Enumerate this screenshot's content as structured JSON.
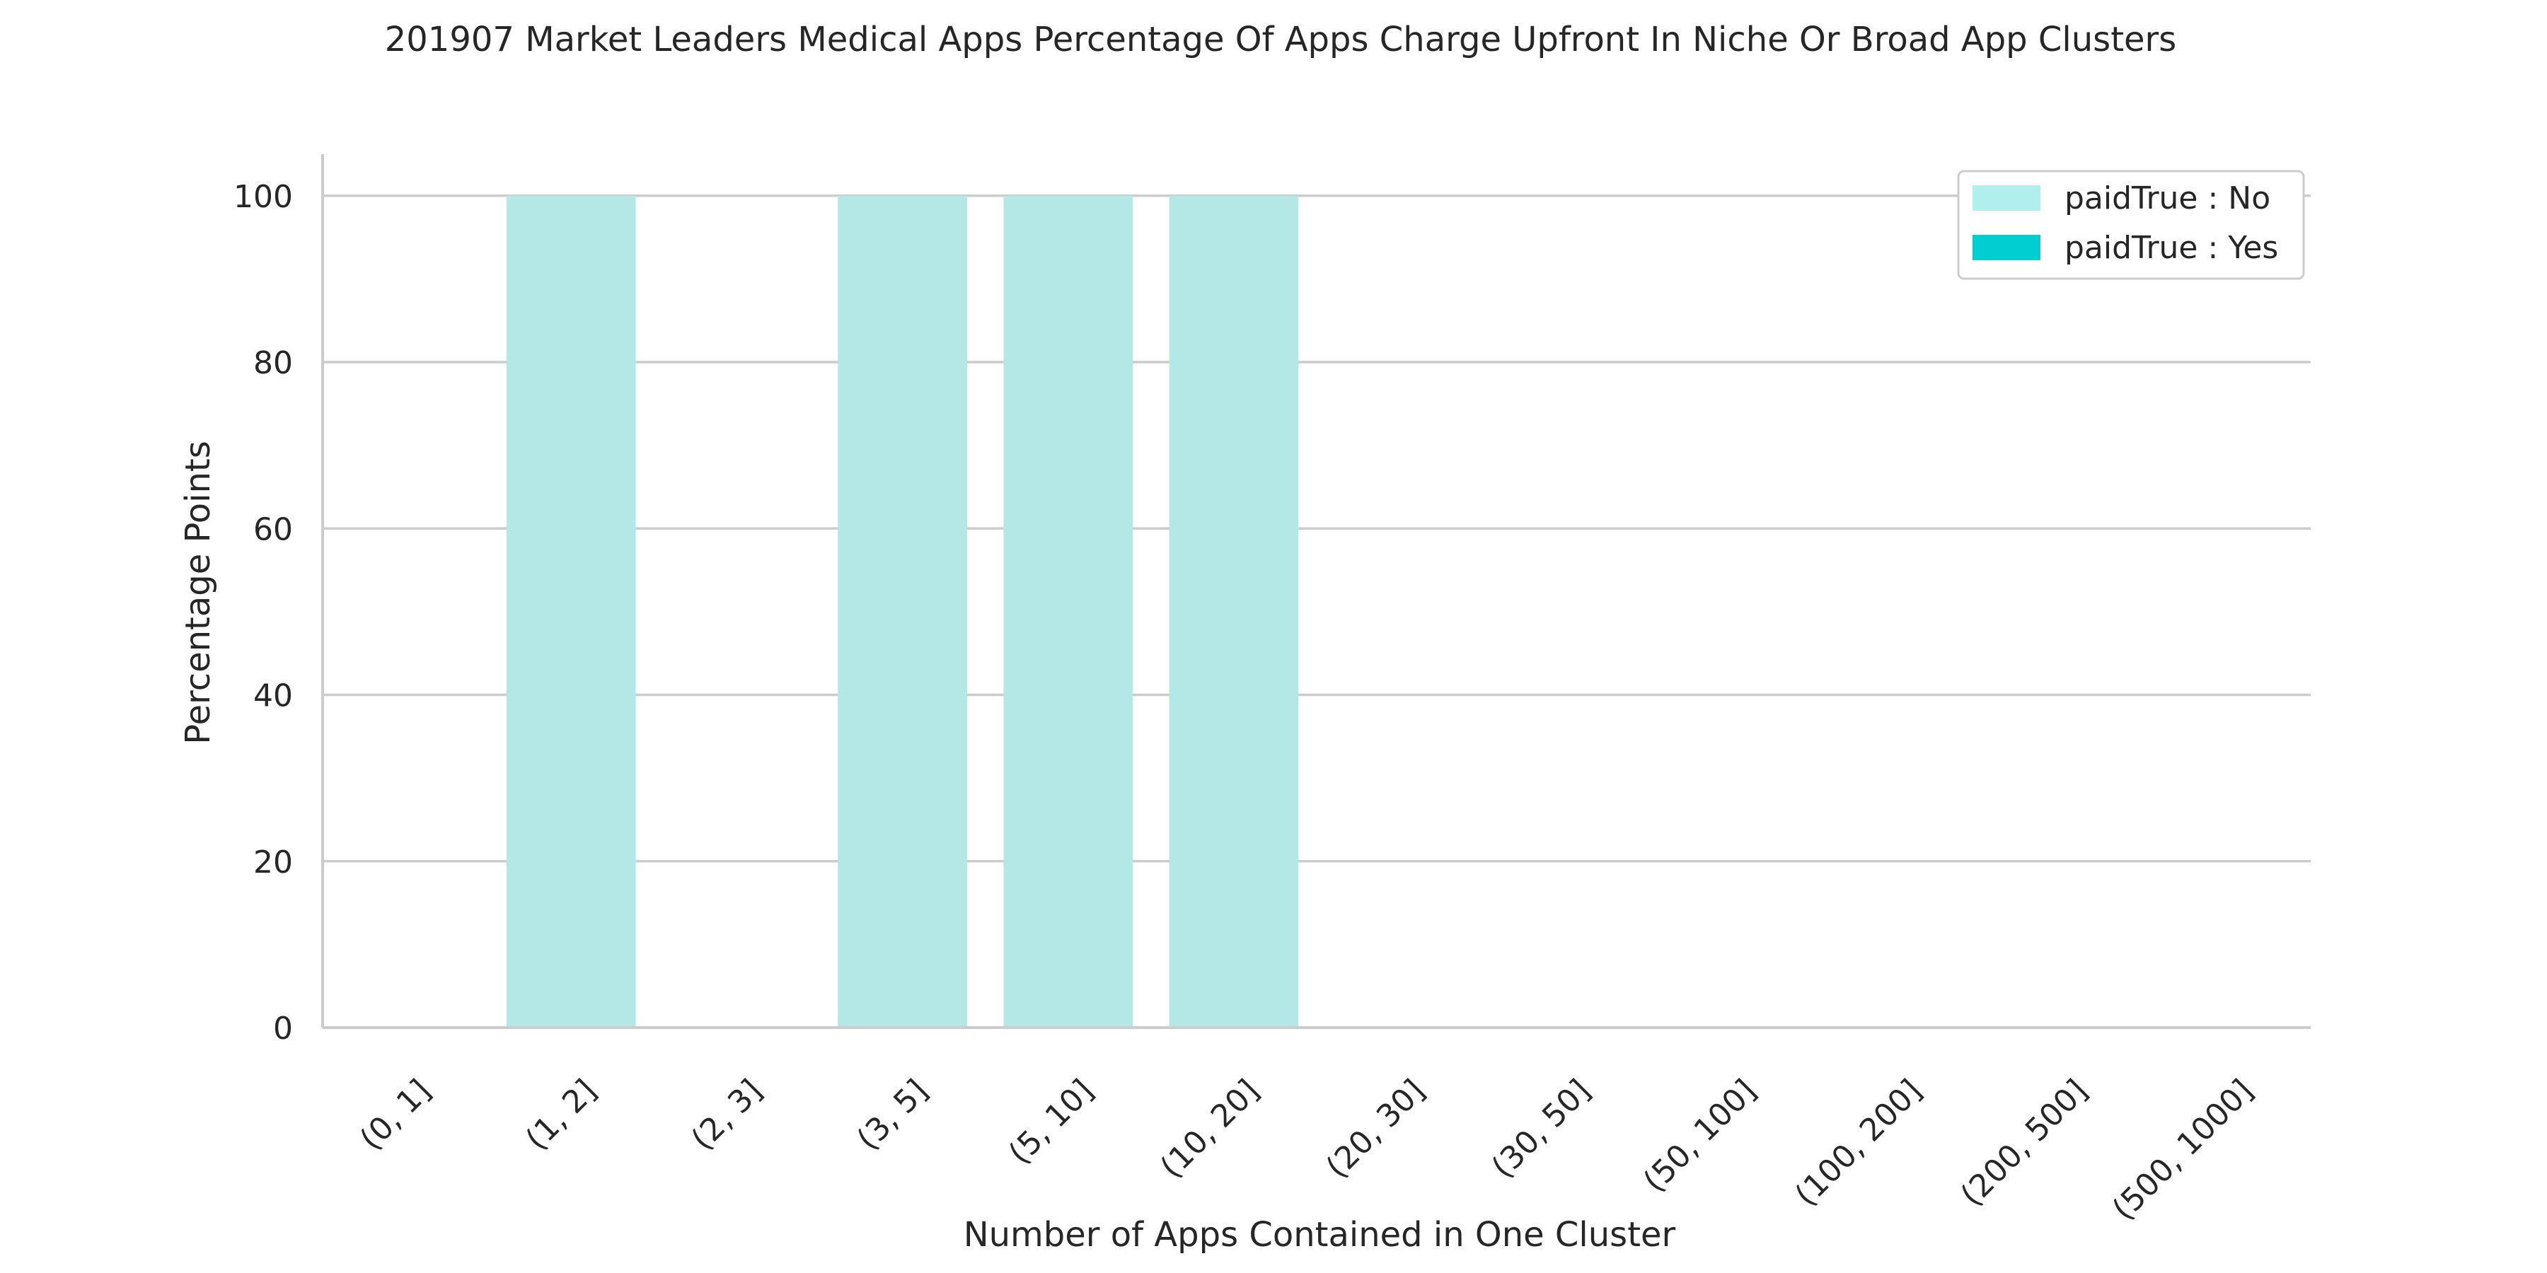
{
  "chart_data": {
    "type": "bar",
    "stacked": true,
    "title": "201907 Market Leaders Medical Apps Percentage Of Apps Charge Upfront In Niche Or Broad App Clusters",
    "xlabel": "Number of Apps Contained in One Cluster",
    "ylabel": "Percentage Points",
    "categories": [
      "(0, 1]",
      "(1, 2]",
      "(2, 3]",
      "(3, 5]",
      "(5, 10]",
      "(10, 20]",
      "(20, 30]",
      "(30, 50]",
      "(50, 100]",
      "(100, 200]",
      "(200, 500]",
      "(500, 1000]"
    ],
    "series": [
      {
        "name": "paidTrue : No",
        "color": "#b3e8e7",
        "legend_color": "#aff0ee",
        "values": [
          0,
          100,
          0,
          100,
          100,
          100,
          0,
          0,
          0,
          0,
          0,
          0
        ]
      },
      {
        "name": "paidTrue : Yes",
        "color": "#00ced1",
        "values": [
          0,
          0,
          0,
          0,
          0,
          0,
          0,
          0,
          0,
          0,
          0,
          0
        ]
      }
    ],
    "ylim": [
      0,
      105
    ],
    "yticks": [
      0,
      20,
      40,
      60,
      80,
      100
    ],
    "grid": true,
    "legend_position": "top-right"
  }
}
